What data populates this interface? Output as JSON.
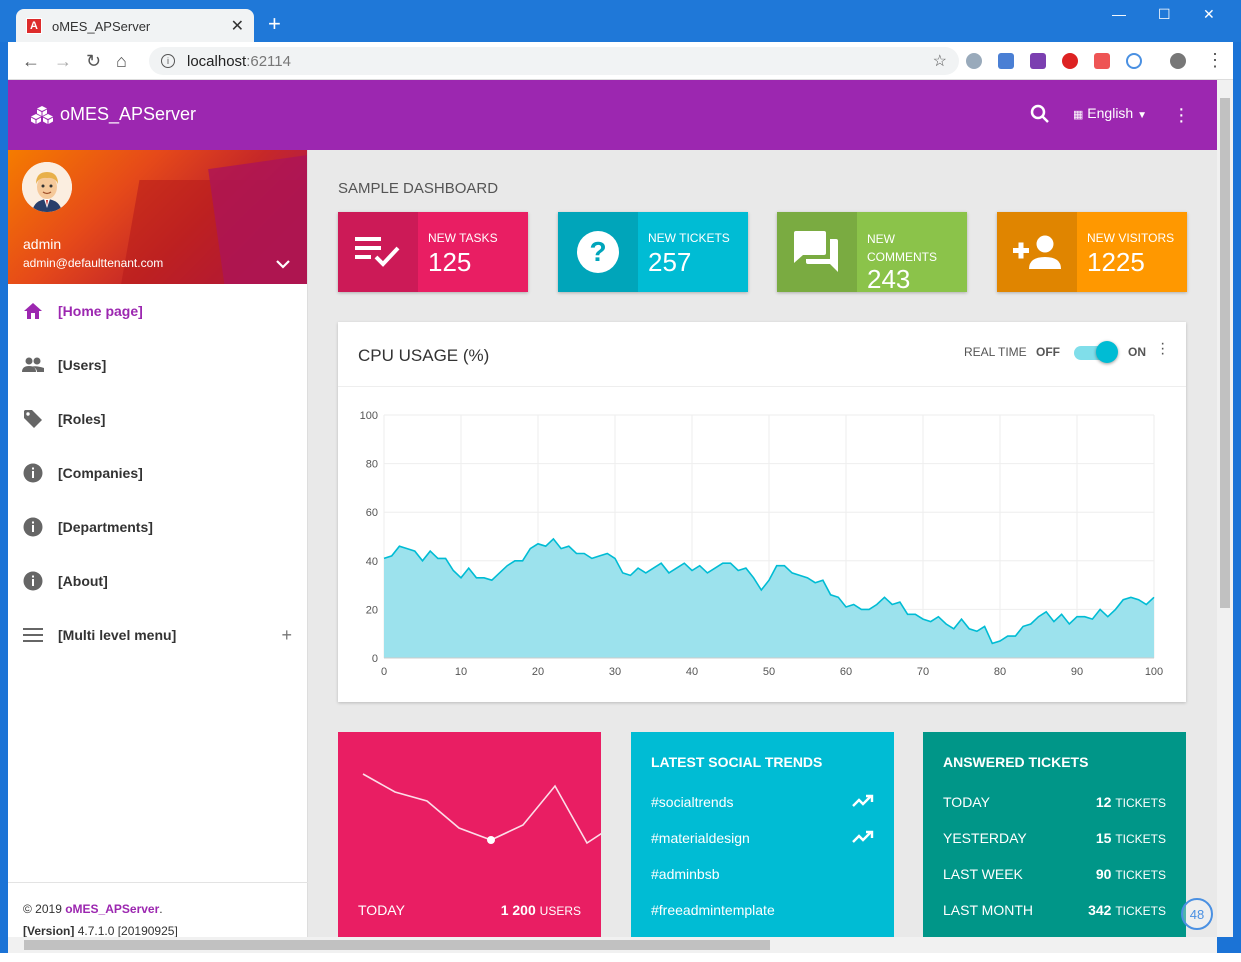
{
  "browser": {
    "tab_title": "oMES_APServer",
    "tab_icon_letter": "A",
    "url_host": "localhost",
    "url_port": ":62114",
    "new_tab": "+",
    "close_tab": "✕"
  },
  "appbar": {
    "brand": "oMES_APServer",
    "language": "English",
    "language_flag": "🇬🇧"
  },
  "user": {
    "name": "admin",
    "email": "admin@defaulttenant.com"
  },
  "menu": [
    {
      "label": "[Home page]",
      "icon": "home-icon",
      "active": true
    },
    {
      "label": "[Users]",
      "icon": "people-icon"
    },
    {
      "label": "[Roles]",
      "icon": "tag-icon"
    },
    {
      "label": "[Companies]",
      "icon": "info-icon"
    },
    {
      "label": "[Departments]",
      "icon": "info-icon"
    },
    {
      "label": "[About]",
      "icon": "info-icon"
    },
    {
      "label": "[Multi level menu]",
      "icon": "menu-icon",
      "expand": "+"
    }
  ],
  "footer": {
    "copyright": "© 2019 ",
    "brand": "oMES_APServer",
    "period": ".",
    "version_label": "[Version]",
    "version": " 4.7.1.0 [20190925]"
  },
  "dashboard": {
    "title": "SAMPLE DASHBOARD",
    "infoboxes": [
      {
        "label": "NEW TASKS",
        "value": "125",
        "color": "#e91e63",
        "icon": "playlist-check-icon"
      },
      {
        "label": "NEW TICKETS",
        "value": "257",
        "color": "#00bcd4",
        "icon": "help-icon"
      },
      {
        "label": "NEW COMMENTS",
        "value": "243",
        "color": "#8bc34a",
        "icon": "forum-icon"
      },
      {
        "label": "NEW VISITORS",
        "value": "1225",
        "color": "#ff9800",
        "icon": "person-add-icon"
      }
    ]
  },
  "cpu": {
    "title": "CPU USAGE (%)",
    "realtime_label": "REAL TIME",
    "off_label": "OFF",
    "on_label": "ON",
    "realtime_on": true
  },
  "chart_data": {
    "type": "area",
    "title": "CPU USAGE (%)",
    "xlabel": "",
    "ylabel": "",
    "xlim": [
      0,
      100
    ],
    "ylim": [
      0,
      100
    ],
    "xticks": [
      0,
      10,
      20,
      30,
      40,
      50,
      60,
      70,
      80,
      90,
      100
    ],
    "yticks": [
      0,
      20,
      40,
      60,
      80,
      100
    ],
    "grid": true,
    "color": "#00bcd4",
    "fill": "#9ce2ed",
    "x": [
      0,
      1,
      2,
      3,
      4,
      5,
      6,
      7,
      8,
      9,
      10,
      11,
      12,
      13,
      14,
      15,
      16,
      17,
      18,
      19,
      20,
      21,
      22,
      23,
      24,
      25,
      26,
      27,
      28,
      29,
      30,
      31,
      32,
      33,
      34,
      35,
      36,
      37,
      38,
      39,
      40,
      41,
      42,
      43,
      44,
      45,
      46,
      47,
      48,
      49,
      50,
      51,
      52,
      53,
      54,
      55,
      56,
      57,
      58,
      59,
      60,
      61,
      62,
      63,
      64,
      65,
      66,
      67,
      68,
      69,
      70,
      71,
      72,
      73,
      74,
      75,
      76,
      77,
      78,
      79,
      80,
      81,
      82,
      83,
      84,
      85,
      86,
      87,
      88,
      89,
      90,
      91,
      92,
      93,
      94,
      95,
      96,
      97,
      98,
      99,
      100
    ],
    "y": [
      41,
      42,
      46,
      45,
      44,
      40,
      44,
      41,
      41,
      36,
      33,
      37,
      33,
      33,
      32,
      35,
      38,
      40,
      40,
      45,
      47,
      46,
      49,
      45,
      46,
      43,
      43,
      41,
      42,
      43,
      41,
      35,
      34,
      37,
      35,
      37,
      39,
      35,
      37,
      39,
      36,
      38,
      35,
      37,
      39,
      39,
      36,
      37,
      33,
      28,
      32,
      38,
      38,
      35,
      34,
      33,
      31,
      32,
      26,
      25,
      21,
      22,
      20,
      20,
      22,
      25,
      22,
      23,
      18,
      18,
      16,
      15,
      17,
      14,
      12,
      16,
      12,
      11,
      13,
      6,
      7,
      9,
      9,
      13,
      14,
      17,
      19,
      15,
      18,
      14,
      17,
      17,
      16,
      20,
      17,
      20,
      24,
      25,
      24,
      22,
      25
    ]
  },
  "sparkline": {
    "today_label": "TODAY",
    "users_value": "1 200",
    "users_unit": "USERS",
    "color": "#e91e63",
    "values": [
      36,
      30,
      27,
      18,
      14,
      19,
      32,
      13,
      20
    ]
  },
  "social": {
    "title": "LATEST SOCIAL TRENDS",
    "color": "#00bcd4",
    "items": [
      {
        "tag": "#socialtrends",
        "trending": true
      },
      {
        "tag": "#materialdesign",
        "trending": true
      },
      {
        "tag": "#adminbsb",
        "trending": false
      },
      {
        "tag": "#freeadmintemplate",
        "trending": false
      }
    ]
  },
  "answered": {
    "title": "ANSWERED TICKETS",
    "color": "#009688",
    "unit": "TICKETS",
    "rows": [
      {
        "label": "TODAY",
        "value": "12"
      },
      {
        "label": "YESTERDAY",
        "value": "15"
      },
      {
        "label": "LAST WEEK",
        "value": "90"
      },
      {
        "label": "LAST MONTH",
        "value": "342"
      }
    ]
  },
  "floating_badge": "48"
}
